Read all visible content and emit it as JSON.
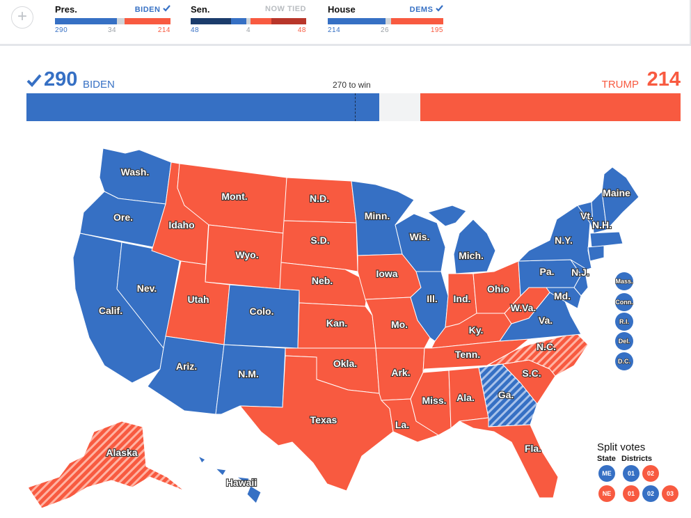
{
  "colors": {
    "dem": "#3670c4",
    "rep": "#f85a40",
    "navy": "#1b3c6b",
    "darkred": "#b8362a",
    "undecided": "#d0d4d8",
    "uncalled": "#f2f3f4"
  },
  "topbar": {
    "plus_icon": "+",
    "pres": {
      "name": "Pres.",
      "status": "BIDEN",
      "dem": "290",
      "mid": "34",
      "rep": "214"
    },
    "sen": {
      "name": "Sen.",
      "status": "NOW TIED",
      "dem": "48",
      "mid": "4",
      "rep": "48"
    },
    "house": {
      "name": "House",
      "status": "DEMS",
      "dem": "214",
      "mid": "26",
      "rep": "195"
    }
  },
  "headline": {
    "dem_votes": "290",
    "dem_name": "BIDEN",
    "threshold": "270 to win",
    "rep_name": "TRUMP",
    "rep_votes": "214"
  },
  "electoral_bar": {
    "total": 538,
    "dem": 290,
    "uncalled": 34,
    "rep": 214,
    "to_win": 270
  },
  "states": [
    {
      "name": "Wash.",
      "party": "dem"
    },
    {
      "name": "Ore.",
      "party": "dem"
    },
    {
      "name": "Calif.",
      "party": "dem"
    },
    {
      "name": "Nev.",
      "party": "dem"
    },
    {
      "name": "Idaho",
      "party": "rep"
    },
    {
      "name": "Mont.",
      "party": "rep"
    },
    {
      "name": "Wyo.",
      "party": "rep"
    },
    {
      "name": "Utah",
      "party": "rep"
    },
    {
      "name": "Colo.",
      "party": "dem"
    },
    {
      "name": "Ariz.",
      "party": "dem"
    },
    {
      "name": "N.M.",
      "party": "dem"
    },
    {
      "name": "N.D.",
      "party": "rep"
    },
    {
      "name": "S.D.",
      "party": "rep"
    },
    {
      "name": "Neb.",
      "party": "rep"
    },
    {
      "name": "Kan.",
      "party": "rep"
    },
    {
      "name": "Okla.",
      "party": "rep"
    },
    {
      "name": "Texas",
      "party": "rep"
    },
    {
      "name": "Minn.",
      "party": "dem"
    },
    {
      "name": "Iowa",
      "party": "rep"
    },
    {
      "name": "Mo.",
      "party": "rep"
    },
    {
      "name": "Ark.",
      "party": "rep"
    },
    {
      "name": "La.",
      "party": "rep"
    },
    {
      "name": "Wis.",
      "party": "dem"
    },
    {
      "name": "Ill.",
      "party": "dem"
    },
    {
      "name": "Mich.",
      "party": "dem"
    },
    {
      "name": "Ind.",
      "party": "rep"
    },
    {
      "name": "Ohio",
      "party": "rep"
    },
    {
      "name": "Ky.",
      "party": "rep"
    },
    {
      "name": "Tenn.",
      "party": "rep"
    },
    {
      "name": "Miss.",
      "party": "rep"
    },
    {
      "name": "Ala.",
      "party": "rep"
    },
    {
      "name": "Ga.",
      "party": "dem-leaning"
    },
    {
      "name": "Fla.",
      "party": "rep"
    },
    {
      "name": "S.C.",
      "party": "rep"
    },
    {
      "name": "N.C.",
      "party": "rep-leaning"
    },
    {
      "name": "Va.",
      "party": "dem"
    },
    {
      "name": "W.Va.",
      "party": "rep"
    },
    {
      "name": "Pa.",
      "party": "dem"
    },
    {
      "name": "N.Y.",
      "party": "dem"
    },
    {
      "name": "Vt.",
      "party": "dem"
    },
    {
      "name": "N.H.",
      "party": "dem"
    },
    {
      "name": "Maine",
      "party": "dem"
    },
    {
      "name": "N.J.",
      "party": "dem"
    },
    {
      "name": "Md.",
      "party": "dem"
    },
    {
      "name": "Alaska",
      "party": "rep-leaning"
    },
    {
      "name": "Hawaii",
      "party": "dem"
    }
  ],
  "small_states": [
    {
      "name": "Mass.",
      "party": "dem"
    },
    {
      "name": "Conn.",
      "party": "dem"
    },
    {
      "name": "R.I.",
      "party": "dem"
    },
    {
      "name": "Del.",
      "party": "dem"
    },
    {
      "name": "D.C.",
      "party": "dem"
    }
  ],
  "split_votes": {
    "title": "Split votes",
    "state_header": "State",
    "districts_header": "Districts",
    "rows": [
      {
        "state": "ME",
        "state_party": "dem",
        "districts": [
          {
            "label": "01",
            "party": "dem"
          },
          {
            "label": "02",
            "party": "rep"
          }
        ]
      },
      {
        "state": "NE",
        "state_party": "rep",
        "districts": [
          {
            "label": "01",
            "party": "rep"
          },
          {
            "label": "02",
            "party": "dem"
          },
          {
            "label": "03",
            "party": "rep"
          }
        ]
      }
    ]
  }
}
